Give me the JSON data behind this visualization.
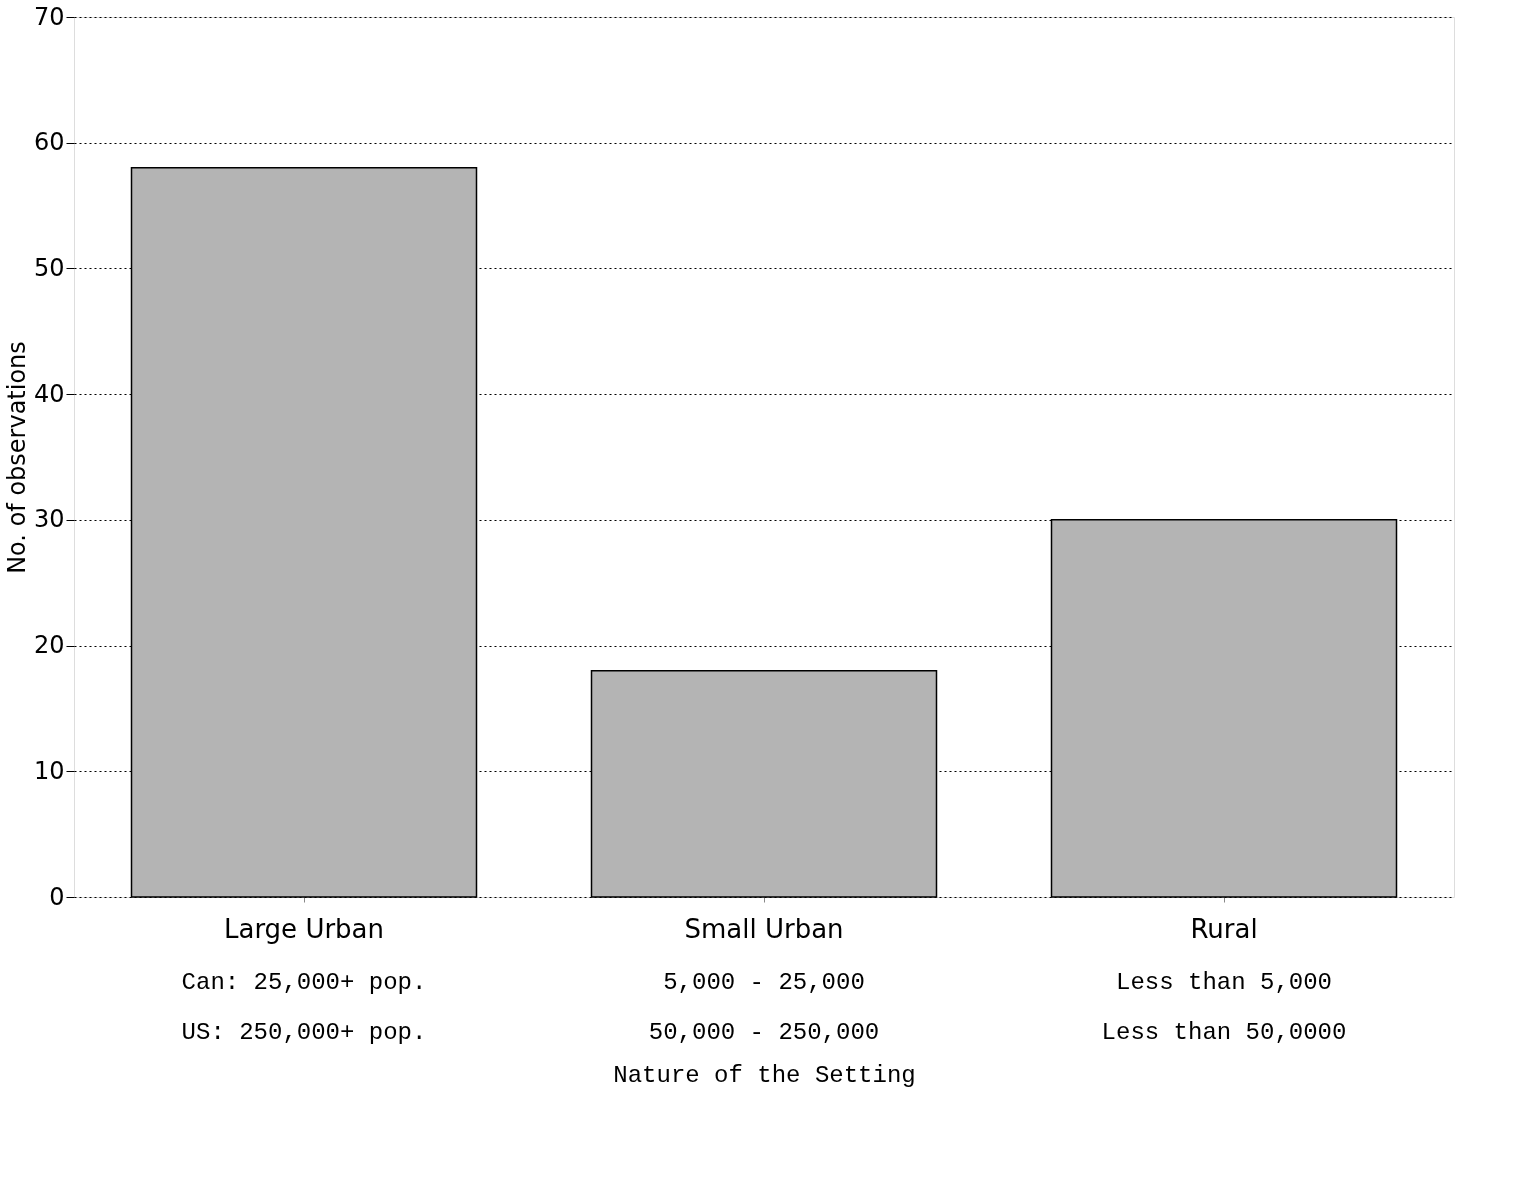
{
  "chart_data": {
    "type": "bar",
    "categories": [
      "Large Urban",
      "Small Urban",
      "Rural"
    ],
    "values": [
      58,
      18,
      30
    ],
    "color": "#b4b4b4",
    "xlabel": "Nature of the Setting",
    "ylabel": "No. of observations",
    "ylim": [
      0,
      70
    ],
    "yticks": [
      0,
      10,
      20,
      30,
      40,
      50,
      60,
      70
    ],
    "grid": "y",
    "annotations": [
      "Can:  25,000+ pop.",
      "5,000 - 25,000",
      "Less than 5,000",
      "US: 250,000+ pop.",
      "50,000 - 250,000",
      "Less than 50,0000"
    ]
  }
}
